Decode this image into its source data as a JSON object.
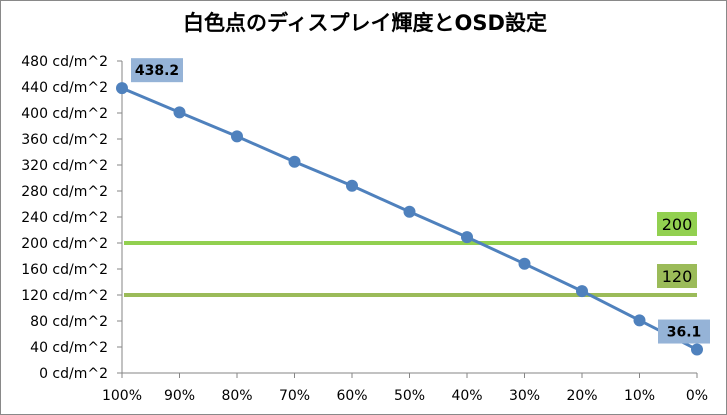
{
  "chart_data": {
    "type": "line",
    "title": "白色点のディスプレイ輝度とOSD設定",
    "categories": [
      "100%",
      "90%",
      "80%",
      "70%",
      "60%",
      "50%",
      "40%",
      "30%",
      "20%",
      "10%",
      "0%"
    ],
    "series": [
      {
        "values": [
          438.2,
          401,
          364,
          325,
          288,
          248,
          209,
          168,
          126,
          81,
          36.1
        ],
        "color": "#4f81bd"
      }
    ],
    "y_ticks": [
      0,
      40,
      80,
      120,
      160,
      200,
      240,
      280,
      320,
      360,
      400,
      440,
      480
    ],
    "y_tick_labels": [
      "0 cd/m^2",
      "40 cd/m^2",
      "80 cd/m^2",
      "120 cd/m^2",
      "160 cd/m^2",
      "200 cd/m^2",
      "240 cd/m^2",
      "280 cd/m^2",
      "320 cd/m^2",
      "360 cd/m^2",
      "400 cd/m^2",
      "440 cd/m^2",
      "480 cd/m^2"
    ],
    "ylim": [
      0,
      480
    ],
    "grid": false,
    "data_labels": [
      {
        "index": 0,
        "text": "438.2",
        "bg": "#95b3d7"
      },
      {
        "index": 10,
        "text": "36.1",
        "bg": "#95b3d7"
      }
    ],
    "reference_lines": [
      {
        "value": 200,
        "label": "200",
        "color": "#92d050",
        "label_bg": "#92d050"
      },
      {
        "value": 120,
        "label": "120",
        "color": "#9bbb59",
        "label_bg": "#9bbb59"
      }
    ]
  }
}
